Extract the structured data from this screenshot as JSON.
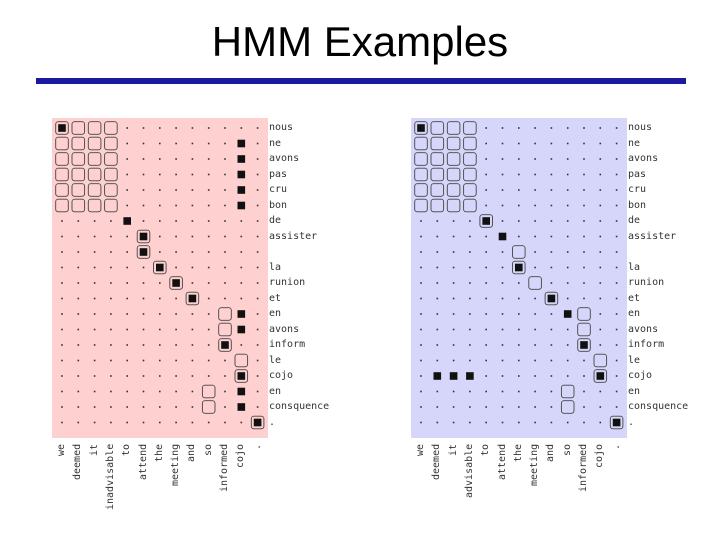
{
  "title": "HMM Examples",
  "colors": {
    "rule": "#1a1aa0",
    "left_bg": "#ffd0d0",
    "right_bg": "#d6d6fa",
    "mark": "#111111"
  },
  "left": {
    "row_labels": [
      "nous",
      "ne",
      "avons",
      "pas",
      "cru",
      "bon",
      "de",
      "assister",
      "",
      "la",
      "runion",
      "et",
      "en",
      "avons",
      "inform",
      "le",
      "cojo",
      "en",
      "consquence",
      "."
    ],
    "col_labels": [
      "we",
      "deemed",
      "it",
      "inadvisable",
      "to",
      "attend",
      "the",
      "meeting",
      "and",
      "so",
      "informed",
      "cojo",
      "."
    ],
    "cells": [
      {
        "r": 0,
        "c": 0,
        "t": "fb"
      },
      {
        "r": 0,
        "c": 1,
        "t": "o"
      },
      {
        "r": 0,
        "c": 2,
        "t": "o"
      },
      {
        "r": 0,
        "c": 3,
        "t": "o"
      },
      {
        "r": 1,
        "c": 0,
        "t": "o"
      },
      {
        "r": 1,
        "c": 1,
        "t": "o"
      },
      {
        "r": 1,
        "c": 2,
        "t": "o"
      },
      {
        "r": 1,
        "c": 3,
        "t": "o"
      },
      {
        "r": 1,
        "c": 11,
        "t": "f"
      },
      {
        "r": 2,
        "c": 0,
        "t": "o"
      },
      {
        "r": 2,
        "c": 1,
        "t": "o"
      },
      {
        "r": 2,
        "c": 2,
        "t": "o"
      },
      {
        "r": 2,
        "c": 3,
        "t": "o"
      },
      {
        "r": 2,
        "c": 11,
        "t": "f"
      },
      {
        "r": 3,
        "c": 0,
        "t": "o"
      },
      {
        "r": 3,
        "c": 1,
        "t": "o"
      },
      {
        "r": 3,
        "c": 2,
        "t": "o"
      },
      {
        "r": 3,
        "c": 3,
        "t": "o"
      },
      {
        "r": 3,
        "c": 11,
        "t": "f"
      },
      {
        "r": 4,
        "c": 0,
        "t": "o"
      },
      {
        "r": 4,
        "c": 1,
        "t": "o"
      },
      {
        "r": 4,
        "c": 2,
        "t": "o"
      },
      {
        "r": 4,
        "c": 3,
        "t": "o"
      },
      {
        "r": 4,
        "c": 11,
        "t": "f"
      },
      {
        "r": 5,
        "c": 0,
        "t": "o"
      },
      {
        "r": 5,
        "c": 1,
        "t": "o"
      },
      {
        "r": 5,
        "c": 2,
        "t": "o"
      },
      {
        "r": 5,
        "c": 3,
        "t": "o"
      },
      {
        "r": 5,
        "c": 11,
        "t": "f"
      },
      {
        "r": 6,
        "c": 4,
        "t": "f"
      },
      {
        "r": 7,
        "c": 5,
        "t": "fb"
      },
      {
        "r": 8,
        "c": 5,
        "t": "fb"
      },
      {
        "r": 9,
        "c": 6,
        "t": "fb"
      },
      {
        "r": 10,
        "c": 7,
        "t": "fb"
      },
      {
        "r": 11,
        "c": 8,
        "t": "fb"
      },
      {
        "r": 12,
        "c": 10,
        "t": "o"
      },
      {
        "r": 12,
        "c": 11,
        "t": "f"
      },
      {
        "r": 13,
        "c": 10,
        "t": "o"
      },
      {
        "r": 13,
        "c": 11,
        "t": "f"
      },
      {
        "r": 14,
        "c": 10,
        "t": "fb"
      },
      {
        "r": 15,
        "c": 11,
        "t": "o"
      },
      {
        "r": 16,
        "c": 11,
        "t": "fb"
      },
      {
        "r": 17,
        "c": 9,
        "t": "o"
      },
      {
        "r": 17,
        "c": 11,
        "t": "f"
      },
      {
        "r": 18,
        "c": 9,
        "t": "o"
      },
      {
        "r": 18,
        "c": 11,
        "t": "f"
      },
      {
        "r": 19,
        "c": 12,
        "t": "fb"
      }
    ]
  },
  "right": {
    "row_labels": [
      "nous",
      "ne",
      "avons",
      "pas",
      "cru",
      "bon",
      "de",
      "assister",
      "",
      "la",
      "runion",
      "et",
      "en",
      "avons",
      "inform",
      "le",
      "cojo",
      "en",
      "consquence",
      "."
    ],
    "col_labels": [
      "we",
      "deemed",
      "it",
      "advisable",
      "to",
      "attend",
      "the",
      "meeting",
      "and",
      "so",
      "informed",
      "cojo",
      "."
    ],
    "cells": [
      {
        "r": 0,
        "c": 0,
        "t": "fb"
      },
      {
        "r": 0,
        "c": 1,
        "t": "o"
      },
      {
        "r": 0,
        "c": 2,
        "t": "o"
      },
      {
        "r": 0,
        "c": 3,
        "t": "o"
      },
      {
        "r": 1,
        "c": 0,
        "t": "o"
      },
      {
        "r": 1,
        "c": 1,
        "t": "o"
      },
      {
        "r": 1,
        "c": 2,
        "t": "o"
      },
      {
        "r": 1,
        "c": 3,
        "t": "o"
      },
      {
        "r": 2,
        "c": 0,
        "t": "o"
      },
      {
        "r": 2,
        "c": 1,
        "t": "o"
      },
      {
        "r": 2,
        "c": 2,
        "t": "o"
      },
      {
        "r": 2,
        "c": 3,
        "t": "o"
      },
      {
        "r": 3,
        "c": 0,
        "t": "o"
      },
      {
        "r": 3,
        "c": 1,
        "t": "o"
      },
      {
        "r": 3,
        "c": 2,
        "t": "o"
      },
      {
        "r": 3,
        "c": 3,
        "t": "o"
      },
      {
        "r": 4,
        "c": 0,
        "t": "o"
      },
      {
        "r": 4,
        "c": 1,
        "t": "o"
      },
      {
        "r": 4,
        "c": 2,
        "t": "o"
      },
      {
        "r": 4,
        "c": 3,
        "t": "o"
      },
      {
        "r": 5,
        "c": 0,
        "t": "o"
      },
      {
        "r": 5,
        "c": 1,
        "t": "o"
      },
      {
        "r": 5,
        "c": 2,
        "t": "o"
      },
      {
        "r": 5,
        "c": 3,
        "t": "o"
      },
      {
        "r": 6,
        "c": 4,
        "t": "fb"
      },
      {
        "r": 7,
        "c": 5,
        "t": "f"
      },
      {
        "r": 8,
        "c": 6,
        "t": "o"
      },
      {
        "r": 9,
        "c": 6,
        "t": "fb"
      },
      {
        "r": 10,
        "c": 7,
        "t": "o"
      },
      {
        "r": 11,
        "c": 8,
        "t": "fb"
      },
      {
        "r": 12,
        "c": 9,
        "t": "f"
      },
      {
        "r": 12,
        "c": 10,
        "t": "o"
      },
      {
        "r": 13,
        "c": 10,
        "t": "o"
      },
      {
        "r": 14,
        "c": 10,
        "t": "fb"
      },
      {
        "r": 15,
        "c": 11,
        "t": "o"
      },
      {
        "r": 16,
        "c": 1,
        "t": "f"
      },
      {
        "r": 16,
        "c": 2,
        "t": "f"
      },
      {
        "r": 16,
        "c": 3,
        "t": "f"
      },
      {
        "r": 16,
        "c": 11,
        "t": "fb"
      },
      {
        "r": 17,
        "c": 9,
        "t": "o"
      },
      {
        "r": 18,
        "c": 9,
        "t": "o"
      },
      {
        "r": 19,
        "c": 12,
        "t": "fb"
      }
    ]
  }
}
